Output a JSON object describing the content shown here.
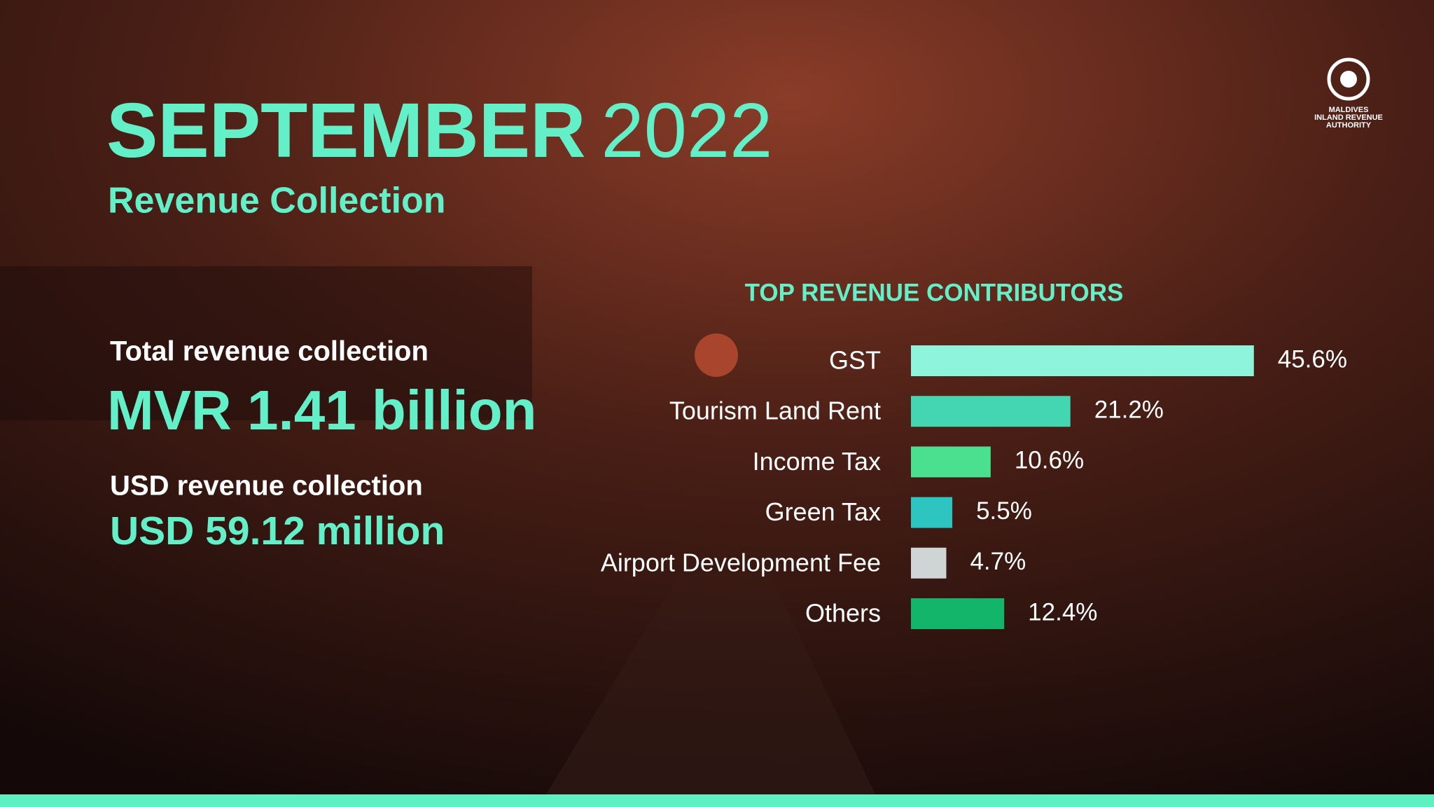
{
  "header": {
    "title_bold": "SEPTEMBER",
    "title_light": "2022",
    "subtitle": "Revenue Collection"
  },
  "logo": {
    "lines": [
      "MALDIVES",
      "INLAND REVENUE",
      "AUTHORITY"
    ]
  },
  "stats": [
    {
      "label": "Total revenue collection",
      "value": "MVR 1.41 billion"
    },
    {
      "label": "USD revenue collection",
      "value": "USD 59.12 million"
    }
  ],
  "chart_data": {
    "type": "bar",
    "orientation": "horizontal",
    "title": "TOP REVENUE CONTRIBUTORS",
    "categories": [
      "GST",
      "Tourism Land Rent",
      "Income Tax",
      "Green Tax",
      "Airport Development Fee",
      "Others"
    ],
    "values": [
      45.6,
      21.2,
      10.6,
      5.5,
      4.7,
      12.4
    ],
    "value_labels": [
      "45.6%",
      "21.2%",
      "10.6%",
      "5.5%",
      "4.7%",
      "12.4%"
    ],
    "colors": [
      "#8ef5dc",
      "#44d6b3",
      "#4be08f",
      "#2ec4c0",
      "#cfd4d4",
      "#13b56a"
    ]
  }
}
